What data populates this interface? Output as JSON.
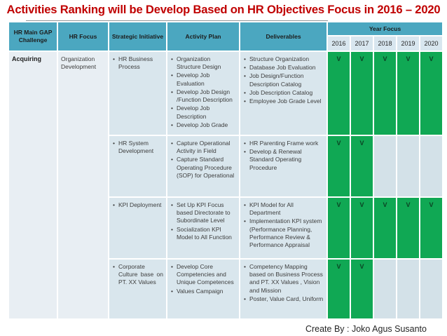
{
  "title": "Activities Ranking will be  Develop Based on HR Objectives Focus in 2016 – 2020",
  "footer": {
    "credit": "Create By : Joko Agus Susanto"
  },
  "colors": {
    "title_red": "#C00000",
    "header_teal": "#4BA7C0",
    "year_subheader": "#D8E6EF",
    "body_cell_blue": "#D9E6ED",
    "merged_cell_blue": "#E8EEF3",
    "focus_green": "#10A854",
    "mark_dark_green": "#0B4223"
  },
  "table": {
    "headers": {
      "col1": "HR Main GAP Challenge",
      "col2": "HR Focus",
      "col3": "Strategic Initiative",
      "col4": "Activity Plan",
      "col5": "Deliverables",
      "year_group": "Year Focus",
      "years": [
        "2016",
        "2017",
        "2018",
        "2019",
        "2020"
      ]
    },
    "gap_challenge": "Acquiring",
    "hr_focus": "Organization Development",
    "rows": [
      {
        "initiative": "HR Business Process",
        "activities": [
          "Organization Structure Design",
          "Develop Job Evaluation",
          "Develop Job Design /Function Description",
          "Develop Job Description",
          "Develop Job Grade"
        ],
        "deliverables": [
          "Structure Organization",
          "Database Job Evaluation",
          "Job Design/Function Description Catalog",
          "Job Description Catalog",
          "Employee Job Grade Level"
        ],
        "year_marks": [
          "V",
          "V",
          "V",
          "V",
          "V"
        ]
      },
      {
        "initiative": "HR System Development",
        "activities": [
          "Capture Operational Activity in Field",
          "Capture Standard Operating Procedure (SOP) for Operational"
        ],
        "deliverables": [
          "HR Parenting Frame work",
          "Develop & Renewal Standard Operating Procedure"
        ],
        "year_marks": [
          "V",
          "V",
          "",
          "",
          ""
        ]
      },
      {
        "initiative": "KPI Deployment",
        "activities": [
          "Set Up KPI Focus based Directorate to Subordinate Level",
          "Socialization KPI Model to All Function"
        ],
        "deliverables": [
          "KPI Model for All Department",
          "Implementation KPI system (Performance Planning, Performance Review & Performance Appraisal"
        ],
        "year_marks": [
          "V",
          "V",
          "V",
          "V",
          "V"
        ]
      },
      {
        "initiative": "Corporate Culture base on PT. XX Values",
        "activities": [
          "Develop Core Competencies and Unique Competences",
          "Values Campaign"
        ],
        "deliverables": [
          "Competency Mapping based on Business Process and PT. XX Values , Vision and Mission",
          "Poster, Value Card, Uniform"
        ],
        "year_marks": [
          "V",
          "V",
          "",
          "",
          ""
        ]
      }
    ]
  }
}
